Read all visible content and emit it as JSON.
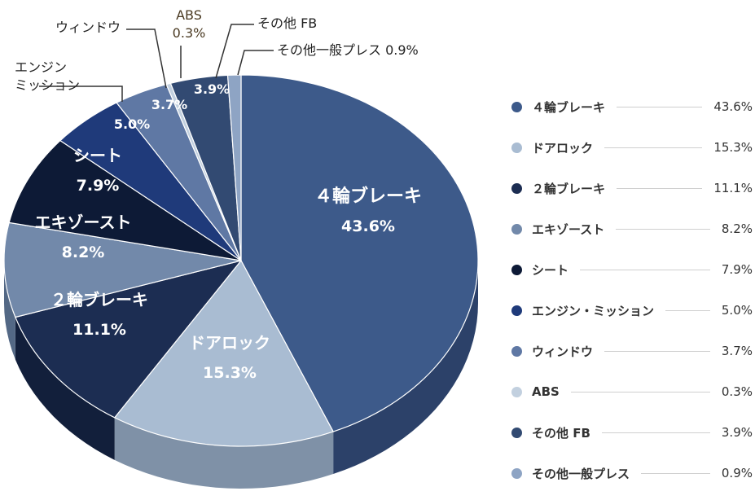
{
  "chart_data": {
    "type": "pie",
    "start_angle_deg": 0,
    "direction": "clockwise",
    "slices": [
      {
        "label": "４輪ブレーキ",
        "legend_label": "４輪ブレーキ",
        "value": 43.6,
        "value_label": "43.6%",
        "color": "#3d5a8a",
        "side_color": "#2c4169"
      },
      {
        "label": "ドアロック",
        "legend_label": "ドアロック",
        "value": 15.3,
        "value_label": "15.3%",
        "color": "#a9bcd2",
        "side_color": "#7f91a7"
      },
      {
        "label": "２輪ブレーキ",
        "legend_label": "２輪ブレーキ",
        "value": 11.1,
        "value_label": "11.1%",
        "color": "#1c2d52",
        "side_color": "#121f3b"
      },
      {
        "label": "エキゾースト",
        "legend_label": "エキゾースト",
        "value": 8.2,
        "value_label": "8.2%",
        "color": "#7289aa",
        "side_color": "#536885"
      },
      {
        "label": "シート",
        "legend_label": "シート",
        "value": 7.9,
        "value_label": "7.9%",
        "color": "#0d1a36",
        "side_color": "#070f22"
      },
      {
        "label": "エンジン\nミッション",
        "legend_label": "エンジン・ミッション",
        "value": 5.0,
        "value_label": "5.0%",
        "color": "#1f3a7a",
        "side_color": "#152958"
      },
      {
        "label": "ウィンドウ",
        "legend_label": "ウィンドウ",
        "value": 3.7,
        "value_label": "3.7%",
        "color": "#5f78a4",
        "side_color": "#45597d"
      },
      {
        "label": "ABS",
        "legend_label": "ABS",
        "value": 0.3,
        "value_label": "0.3%",
        "color": "#c2d0df",
        "side_color": "#9aa9ba"
      },
      {
        "label": "その他 FB",
        "legend_label": "その他 FB",
        "value": 3.9,
        "value_label": "3.9%",
        "color": "#324a72",
        "side_color": "#233653"
      },
      {
        "label": "その他一般プレス",
        "legend_label": "その他一般プレス",
        "value": 0.9,
        "value_label": "0.9%",
        "color": "#8ea4c4",
        "side_color": "#6c7f9c"
      }
    ]
  }
}
